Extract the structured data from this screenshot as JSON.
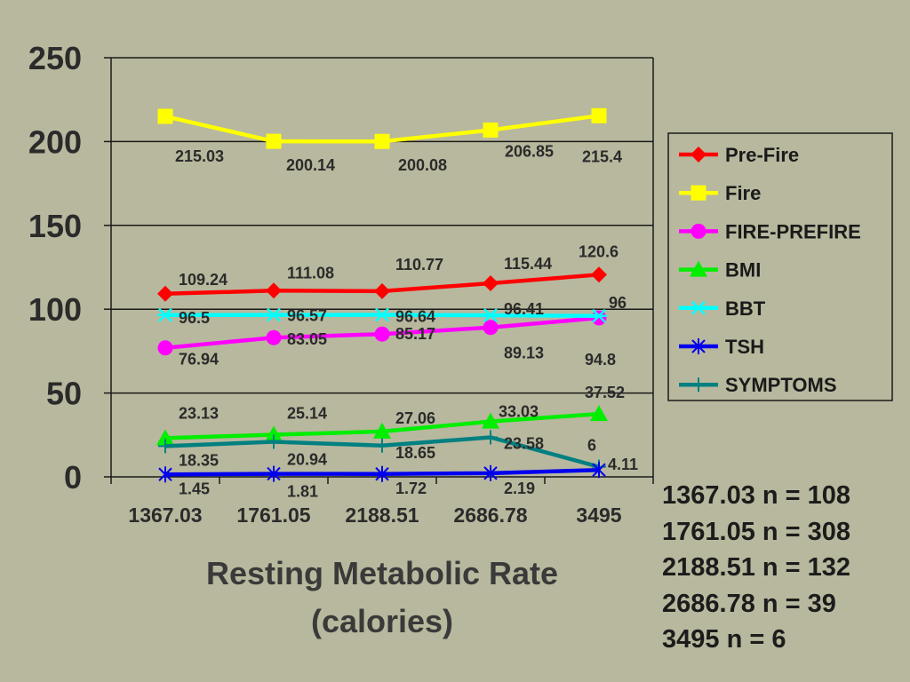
{
  "chart_data": {
    "type": "line",
    "x": [
      "1367.03",
      "1761.05",
      "2188.51",
      "2686.78",
      "3495"
    ],
    "ylim": [
      0,
      250
    ],
    "yticks": [
      0,
      50,
      100,
      150,
      200,
      250
    ],
    "xlabel_lines": [
      "Resting Metabolic Rate",
      "(calories)"
    ],
    "grid": "horizontal",
    "legend_position": "right",
    "series": [
      {
        "name": "Pre-Fire",
        "color": "#ff0000",
        "marker": "diamond",
        "values": [
          109.24,
          111.08,
          110.77,
          115.44,
          120.6
        ],
        "labels": [
          "109.24",
          "111.08",
          "110.77",
          "115.44",
          "120.6"
        ]
      },
      {
        "name": "Fire",
        "color": "#ffff00",
        "marker": "square",
        "values": [
          215.03,
          200.14,
          200.08,
          206.85,
          215.4
        ],
        "labels": [
          "215.03",
          "200.14",
          "200.08",
          "206.85",
          "215.4"
        ]
      },
      {
        "name": "FIRE-PREFIRE",
        "color": "#ff00ff",
        "marker": "circle",
        "values": [
          76.94,
          83.05,
          85.17,
          89.13,
          94.8
        ],
        "labels": [
          "76.94",
          "83.05",
          "85.17",
          "89.13",
          "94.8"
        ]
      },
      {
        "name": "BMI",
        "color": "#00ee00",
        "marker": "triangle",
        "values": [
          23.13,
          25.14,
          27.06,
          33.03,
          37.52
        ],
        "labels": [
          "23.13",
          "25.14",
          "27.06",
          "33.03",
          "37.52"
        ]
      },
      {
        "name": "BBT",
        "color": "#00ffff",
        "marker": "asterisk",
        "values": [
          96.5,
          96.57,
          96.64,
          96.41,
          96
        ],
        "labels": [
          "96.5",
          "96.57",
          "96.64",
          "96.41",
          "96"
        ]
      },
      {
        "name": "TSH",
        "color": "#0000ee",
        "marker": "star",
        "values": [
          1.45,
          1.81,
          1.72,
          2.19,
          4.11
        ],
        "labels": [
          "1.45",
          "1.81",
          "1.72",
          "2.19",
          "4.11"
        ]
      },
      {
        "name": "SYMPTOMS",
        "color": "#008080",
        "marker": "plus",
        "values": [
          18.35,
          20.94,
          18.65,
          23.58,
          6
        ],
        "labels": [
          "18.35",
          "20.94",
          "18.65",
          "23.58",
          "6"
        ]
      }
    ]
  },
  "notes": [
    "1367.03 n = 108",
    "1761.05 n = 308",
    "2188.51 n = 132",
    "2686.78 n = 39",
    "3495 n = 6"
  ]
}
